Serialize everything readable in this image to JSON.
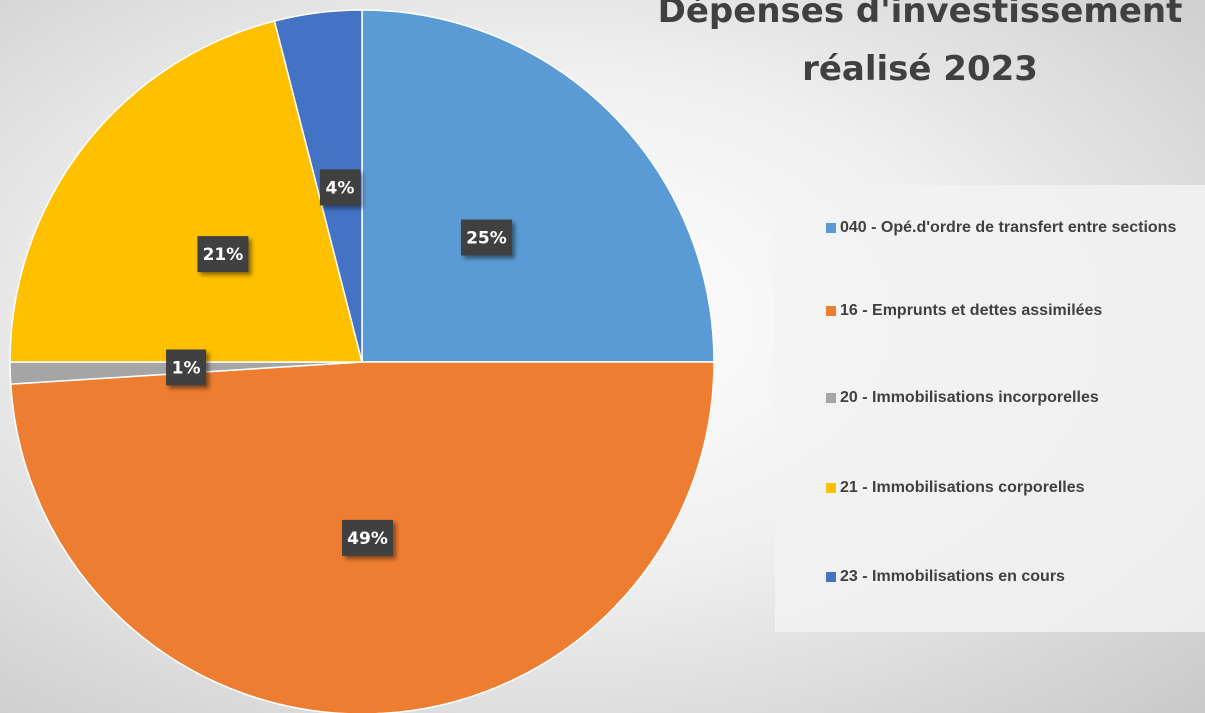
{
  "chart_data": {
    "type": "pie",
    "title": "Dépenses d'investissement réalisé 2023",
    "categories": [
      "040 - Opé.d'ordre de transfert entre sections",
      "16 - Emprunts et dettes assimilées",
      "20 - Immobilisations incorporelles",
      "21 - Immobilisations corporelles",
      "23 - Immobilisations en cours"
    ],
    "values": [
      25,
      49,
      1,
      21,
      4
    ],
    "value_labels": [
      "25%",
      "49%",
      "1%",
      "21%",
      "4%"
    ],
    "colors": [
      "#5b9bd5",
      "#ed7d31",
      "#a5a5a5",
      "#ffc000",
      "#4472c4"
    ],
    "legend": "right"
  }
}
